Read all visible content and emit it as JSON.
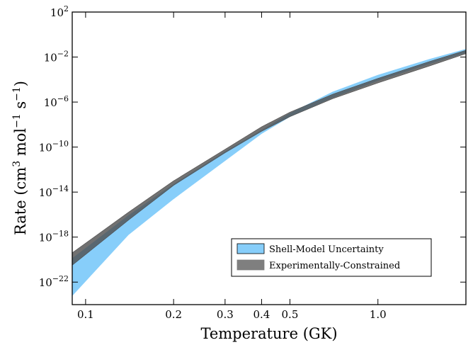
{
  "chart_data": {
    "type": "area",
    "title": "",
    "xlabel": "Temperature (GK)",
    "ylabel": "Rate (cm³ mol⁻¹ s⁻¹)",
    "ylabel_parts": {
      "a": "Rate (cm",
      "a_sup": "3",
      "b": " mol",
      "b_sup": "−1",
      "c": " s",
      "c_sup": "−1",
      "d": ")"
    },
    "xscale": "log",
    "yscale": "log",
    "xlim": [
      0.09,
      2.0
    ],
    "ylim": [
      1e-24,
      100
    ],
    "x_ticks": [
      {
        "value": 0.1,
        "label": "0.1"
      },
      {
        "value": 0.2,
        "label": "0.2"
      },
      {
        "value": 0.3,
        "label": "0.3"
      },
      {
        "value": 0.4,
        "label": "0.4"
      },
      {
        "value": 0.5,
        "label": "0.5"
      },
      {
        "value": 1.0,
        "label": "1.0"
      }
    ],
    "y_ticks": [
      {
        "exp": 2,
        "base": "10",
        "sup": "2"
      },
      {
        "exp": -2,
        "base": "10",
        "sup": "−2"
      },
      {
        "exp": -6,
        "base": "10",
        "sup": "−6"
      },
      {
        "exp": -10,
        "base": "10",
        "sup": "−10"
      },
      {
        "exp": -14,
        "base": "10",
        "sup": "−14"
      },
      {
        "exp": -18,
        "base": "10",
        "sup": "−18"
      },
      {
        "exp": -22,
        "base": "10",
        "sup": "−22"
      }
    ],
    "legend_position": "lower-right",
    "grid": false,
    "series": [
      {
        "name": "Shell-Model Uncertainty",
        "color": "#87cefa",
        "x": [
          0.09,
          0.14,
          0.2,
          0.3,
          0.4,
          0.5,
          0.7,
          1.0,
          1.5,
          2.0
        ],
        "lower_log10": [
          -23.2,
          -17.8,
          -14.6,
          -11.2,
          -8.8,
          -7.3,
          -5.6,
          -4.1,
          -2.6,
          -1.6
        ],
        "upper_log10": [
          -19.9,
          -16.1,
          -13.3,
          -10.4,
          -8.5,
          -7.0,
          -5.1,
          -3.6,
          -2.2,
          -1.3
        ]
      },
      {
        "name": "Experimentally-Constrained",
        "color": "#4d4d4d",
        "x": [
          0.09,
          0.14,
          0.2,
          0.3,
          0.4,
          0.5,
          0.7,
          1.0,
          1.5,
          2.0
        ],
        "lower_log10": [
          -20.5,
          -16.5,
          -13.4,
          -10.5,
          -8.6,
          -7.3,
          -5.7,
          -4.3,
          -2.8,
          -1.7
        ],
        "upper_log10": [
          -19.4,
          -15.8,
          -13.0,
          -10.2,
          -8.2,
          -6.9,
          -5.3,
          -3.9,
          -2.4,
          -1.4
        ]
      }
    ]
  }
}
